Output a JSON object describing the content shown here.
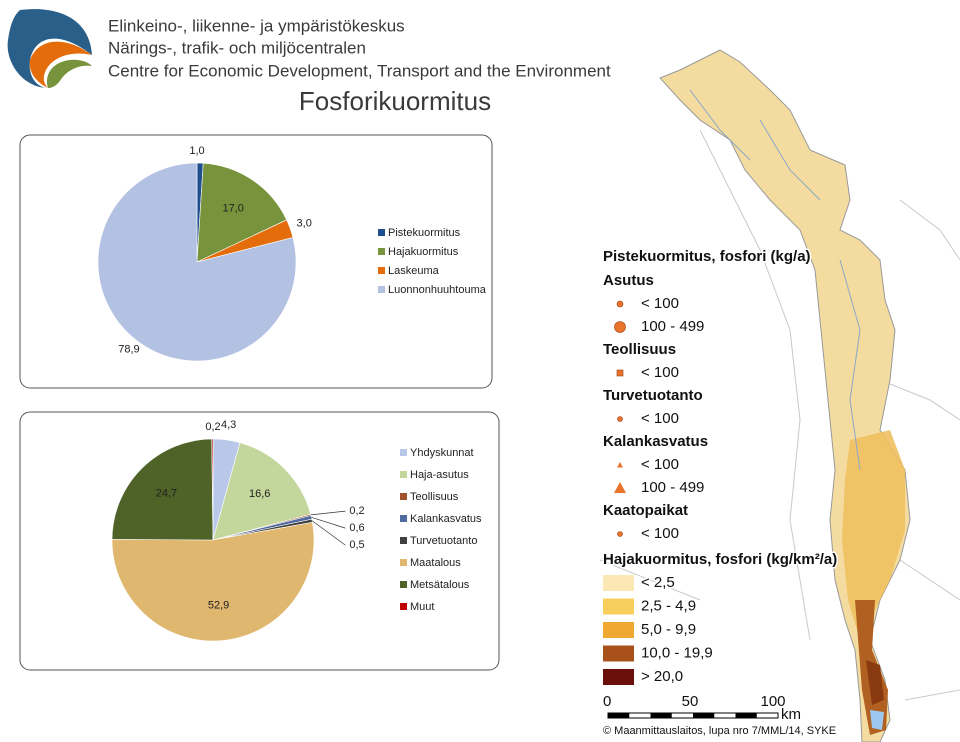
{
  "header": {
    "org_fi": "Elinkeino-, liikenne- ja ympäristökeskus",
    "org_sv": "Närings-, trafik- och miljöcentralen",
    "org_en": "Centre for Economic Development, Transport and the Environment",
    "title": "Fosforikuormitus"
  },
  "chart_data": [
    {
      "type": "pie",
      "categories": [
        "Pistekuormitus",
        "Hajakuormitus",
        "Laskeuma",
        "Luonnonhuuhtouma"
      ],
      "values": [
        1.0,
        17.0,
        3.0,
        78.9
      ],
      "value_labels": [
        "1,0",
        "17,0",
        "3,0",
        "78,9"
      ],
      "colors": [
        "#1f4e8c",
        "#77933c",
        "#e46c0a",
        "#b3c2e3"
      ]
    },
    {
      "type": "pie",
      "categories": [
        "Yhdyskunnat",
        "Haja-asutus",
        "Teollisuus",
        "Kalankasvatus",
        "Turvetuotanto",
        "Maatalous",
        "Metsätalous",
        "Muut"
      ],
      "values": [
        4.3,
        16.6,
        0.2,
        0.6,
        0.5,
        52.9,
        24.7,
        0.2
      ],
      "value_labels": [
        "4,3",
        "16,6",
        "0,2",
        "0,6",
        "0,5",
        "52,9",
        "24,7",
        "0,2"
      ],
      "colors": [
        "#b9c7e8",
        "#c3d69b",
        "#a0522d",
        "#4f6a9e",
        "#404040",
        "#e0b76e",
        "#4f6228",
        "#c00000"
      ]
    }
  ],
  "map_legend": {
    "title": "Pistekuormitus, fosfori (kg/a)",
    "groups": [
      {
        "name": "Asutus",
        "items": [
          "< 100",
          "100 - 499"
        ]
      },
      {
        "name": "Teollisuus",
        "items": [
          "< 100"
        ]
      },
      {
        "name": "Turvetuotanto",
        "items": [
          "< 100"
        ]
      },
      {
        "name": "Kalankasvatus",
        "items": [
          "< 100",
          "100 - 499"
        ]
      },
      {
        "name": "Kaatopaikat",
        "items": [
          "< 100"
        ]
      }
    ],
    "area_title": "Hajakuormitus, fosfori (kg/km²/a)",
    "area_items": [
      {
        "label": "< 2,5",
        "color": "#fbe8b4"
      },
      {
        "label": "2,5 - 4,9",
        "color": "#f8cf5c"
      },
      {
        "label": "5,0 - 9,9",
        "color": "#f0a830"
      },
      {
        "label": "10,0 - 19,9",
        "color": "#a8521a"
      },
      {
        "label": "> 20,0",
        "color": "#6b0f0a"
      }
    ],
    "scale": {
      "labels": [
        "0",
        "50",
        "100"
      ],
      "unit": "km"
    },
    "credit": "© Maanmittauslaitos, lupa nro 7/MML/14, SYKE"
  }
}
